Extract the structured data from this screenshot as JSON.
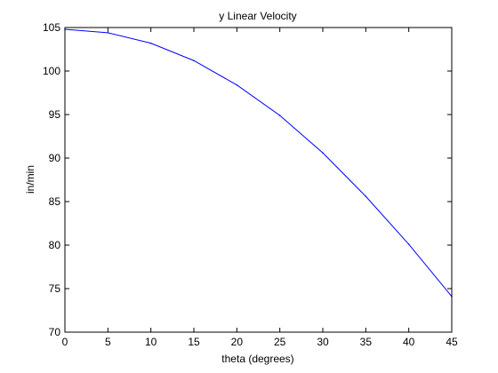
{
  "colors": {
    "background": "#ffffff",
    "axis": "#000000",
    "line": "#0000ff"
  },
  "chart_data": {
    "type": "line",
    "title": "y Linear Velocity",
    "xlabel": "theta (degrees)",
    "ylabel": "in/min",
    "xlim": [
      0,
      45
    ],
    "ylim": [
      70,
      105
    ],
    "xticks": [
      0,
      5,
      10,
      15,
      20,
      25,
      30,
      35,
      40,
      45
    ],
    "yticks": [
      70,
      75,
      80,
      85,
      90,
      95,
      100,
      105
    ],
    "grid": false,
    "legend": "none",
    "series": [
      {
        "x": [
          0,
          5,
          10,
          15,
          20,
          25,
          30,
          35,
          40,
          45
        ],
        "y": [
          104.8,
          104.4,
          103.2,
          101.2,
          98.4,
          94.9,
          90.6,
          85.6,
          80.1,
          74.1
        ]
      }
    ]
  }
}
